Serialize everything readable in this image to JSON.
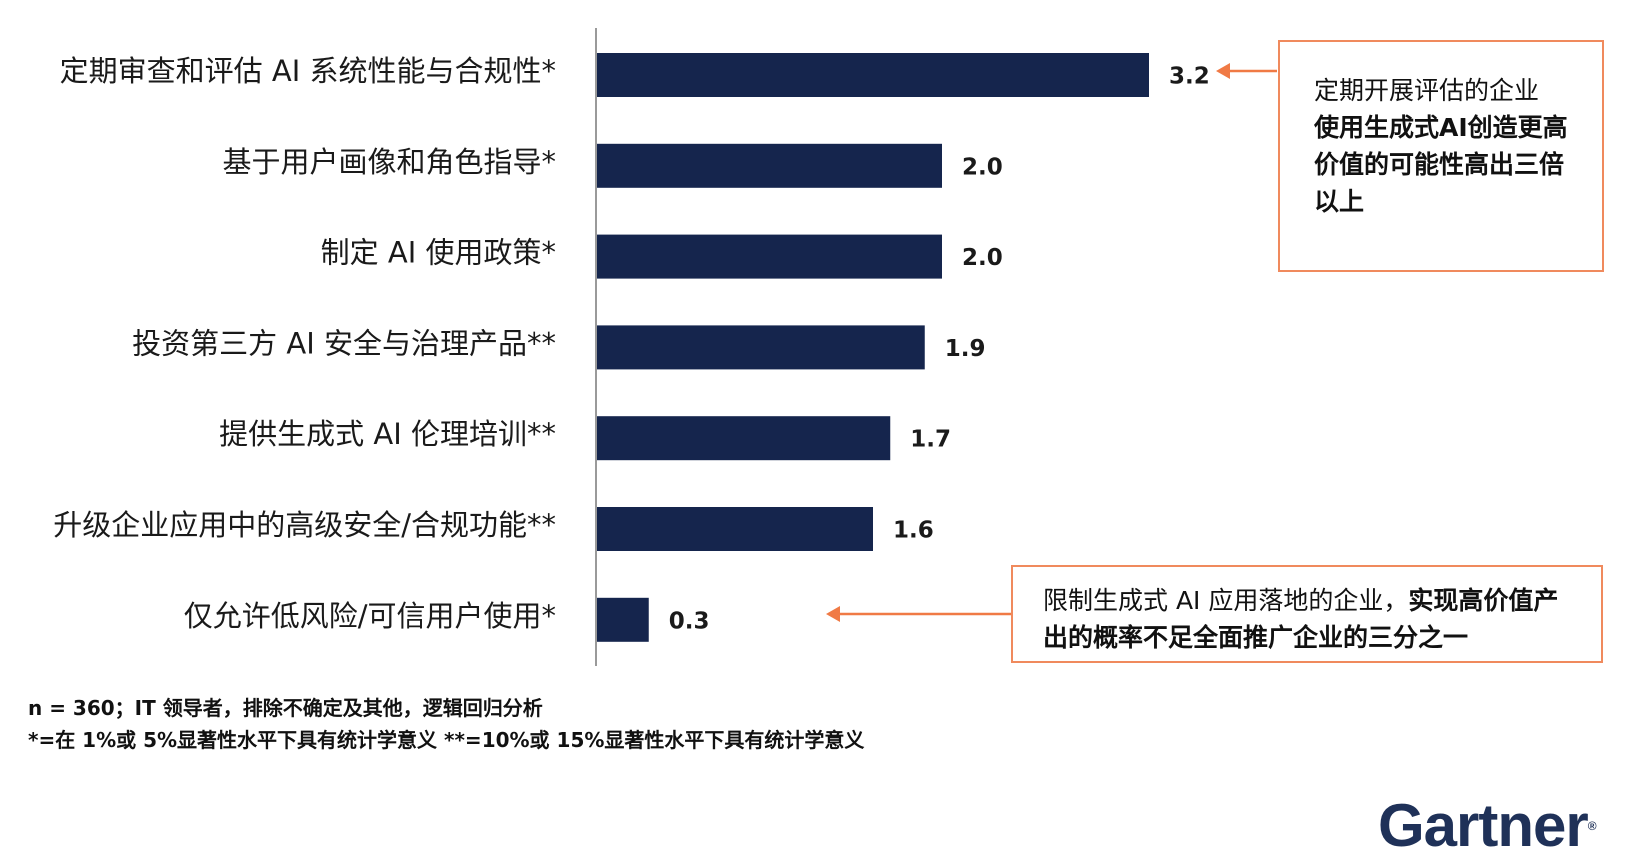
{
  "chart_data": {
    "type": "bar",
    "orientation": "horizontal",
    "categories": [
      "定期审查和评估 AI 系统性能与合规性*",
      "基于用户画像和角色指导*",
      "制定 AI 使用政策*",
      "投资第三方 AI 安全与治理产品**",
      "提供生成式 AI 伦理培训**",
      "升级企业应用中的高级安全/合规功能**",
      "仅允许低风险/可信用户使用*"
    ],
    "values": [
      3.2,
      2.0,
      2.0,
      1.9,
      1.7,
      1.6,
      0.3
    ],
    "value_labels": [
      "3.2",
      "2.0",
      "2.0",
      "1.9",
      "1.7",
      "1.6",
      "0.3"
    ],
    "bar_color": "#15254d",
    "grid": false
  },
  "callouts": {
    "top": {
      "normal": "定期开展评估的企业",
      "bold": "使用生成式AI创造更高价值的可能性高出三倍以上"
    },
    "bottom": {
      "normal": "限制生成式 AI 应用落地的企业，",
      "bold": "实现高价值产出的概率不足全面推广企业的三分之一"
    },
    "border_color": "#f08a5d",
    "arrow_color": "#f07a45"
  },
  "footnotes": {
    "line1": "n = 360；IT 领导者，排除不确定及其他，逻辑回归分析",
    "line2": "*=在 1%或 5%显著性水平下具有统计学意义 **=10%或 15%显著性水平下具有统计学意义"
  },
  "logo": {
    "text": "Gartner",
    "mark": "®",
    "color": "#1f3158"
  }
}
